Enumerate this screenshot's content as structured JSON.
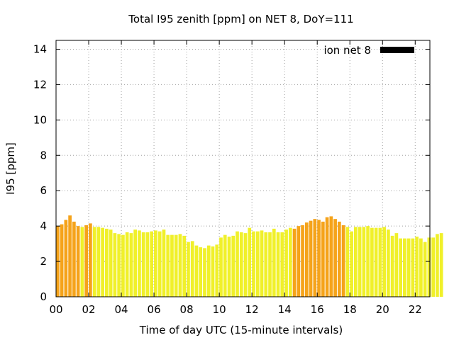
{
  "chart_data": {
    "type": "bar",
    "title": "Total I95 zenith [ppm] on NET 8, DoY=111",
    "xlabel": "Time of day UTC (15-minute intervals)",
    "ylabel": "I95 [ppm]",
    "xlim": [
      0,
      22.9
    ],
    "ylim": [
      0,
      14.5
    ],
    "xticks": [
      "00",
      "02",
      "04",
      "06",
      "08",
      "10",
      "12",
      "14",
      "16",
      "18",
      "20",
      "22"
    ],
    "yticks": [
      "0",
      "2",
      "4",
      "6",
      "8",
      "10",
      "12",
      "14"
    ],
    "grid": true,
    "legend": {
      "label": "ion net 8",
      "color": "#000000",
      "position": "top-right"
    },
    "colors": {
      "orange": "#f5a31a",
      "yellow": "#f0f02a"
    },
    "series": [
      {
        "interval_hours": 0.25,
        "start_hour": 0,
        "values": [
          4.0,
          4.1,
          4.35,
          4.6,
          4.25,
          4.0,
          3.95,
          4.05,
          4.15,
          3.95,
          3.95,
          3.9,
          3.85,
          3.8,
          3.6,
          3.55,
          3.5,
          3.65,
          3.6,
          3.8,
          3.75,
          3.65,
          3.65,
          3.7,
          3.75,
          3.7,
          3.8,
          3.5,
          3.5,
          3.5,
          3.55,
          3.45,
          3.1,
          3.15,
          2.9,
          2.8,
          2.75,
          2.9,
          2.85,
          2.95,
          3.35,
          3.5,
          3.4,
          3.45,
          3.7,
          3.65,
          3.6,
          3.9,
          3.7,
          3.7,
          3.75,
          3.65,
          3.65,
          3.85,
          3.65,
          3.65,
          3.8,
          3.9,
          3.85,
          4.0,
          4.05,
          4.2,
          4.3,
          4.4,
          4.35,
          4.25,
          4.5,
          4.55,
          4.4,
          4.25,
          4.05,
          3.95,
          3.7,
          3.95,
          3.95,
          3.95,
          4.0,
          3.9,
          3.9,
          3.9,
          3.95,
          3.8,
          3.45,
          3.6,
          3.3,
          3.3,
          3.3,
          3.3,
          3.4,
          3.3,
          3.1,
          3.35,
          3.35,
          3.55,
          3.6
        ],
        "color_class": [
          "o",
          "o",
          "o",
          "o",
          "o",
          "o",
          "y",
          "o",
          "o",
          "y",
          "y",
          "y",
          "y",
          "y",
          "y",
          "y",
          "y",
          "y",
          "y",
          "y",
          "y",
          "y",
          "y",
          "y",
          "y",
          "y",
          "y",
          "y",
          "y",
          "y",
          "y",
          "y",
          "y",
          "y",
          "y",
          "y",
          "y",
          "y",
          "y",
          "y",
          "y",
          "y",
          "y",
          "y",
          "y",
          "y",
          "y",
          "y",
          "y",
          "y",
          "y",
          "y",
          "y",
          "y",
          "y",
          "y",
          "y",
          "y",
          "o",
          "o",
          "o",
          "o",
          "o",
          "o",
          "o",
          "o",
          "o",
          "o",
          "o",
          "o",
          "o",
          "y",
          "y",
          "y",
          "y",
          "y",
          "y",
          "y",
          "y",
          "y",
          "y",
          "y",
          "y",
          "y",
          "y",
          "y",
          "y",
          "y",
          "y",
          "y",
          "y",
          "y",
          "y",
          "y",
          "y"
        ]
      }
    ]
  }
}
